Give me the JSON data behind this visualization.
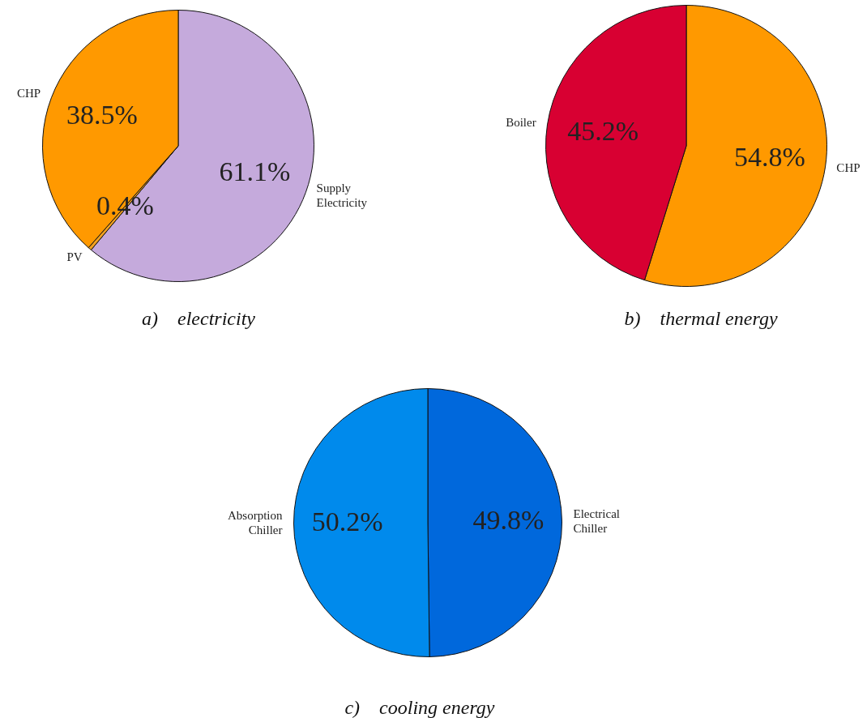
{
  "chart_data": [
    {
      "type": "pie",
      "title": "a)    electricity",
      "categories": [
        "Supply Electricity",
        "PV",
        "CHP"
      ],
      "values": [
        61.1,
        0.4,
        38.5
      ],
      "colors": [
        "#c5aadc",
        "#f0a020",
        "#ff9900"
      ],
      "value_labels": [
        "61.1%",
        "0.4%",
        "38.5%"
      ]
    },
    {
      "type": "pie",
      "title": "b)    thermal energy",
      "categories": [
        "CHP",
        "Boiler"
      ],
      "values": [
        54.8,
        45.2
      ],
      "colors": [
        "#ff9900",
        "#d80032"
      ],
      "value_labels": [
        "54.8%",
        "45.2%"
      ]
    },
    {
      "type": "pie",
      "title": "c)    cooling energy",
      "categories": [
        "Electrical Chiller",
        "Absorption Chiller"
      ],
      "values": [
        49.8,
        50.2
      ],
      "colors": [
        "#0068dc",
        "#008aec"
      ],
      "value_labels": [
        "49.8%",
        "50.2%"
      ]
    }
  ]
}
